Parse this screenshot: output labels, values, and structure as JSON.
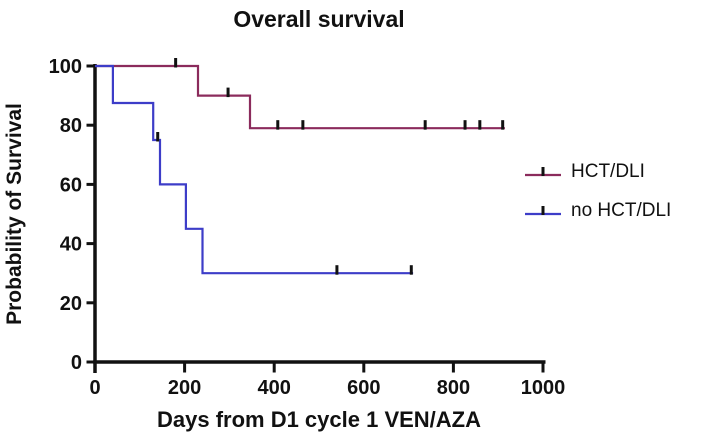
{
  "figure": {
    "background": "#ffffff",
    "axis_color": "#111111"
  },
  "chart_data": {
    "type": "line",
    "subtype": "kaplan_meier_step",
    "title": "Overall survival",
    "xlabel": "Days from D1 cycle 1 VEN/AZA",
    "ylabel": "Probability of Survival",
    "xlim": [
      0,
      1000
    ],
    "ylim": [
      0,
      100
    ],
    "x_ticks": [
      0,
      200,
      400,
      600,
      800,
      1000
    ],
    "y_ticks": [
      0,
      20,
      40,
      60,
      80,
      100
    ],
    "grid": false,
    "legend_position": "right",
    "series": [
      {
        "name": "HCT/DLI",
        "color": "#8B2B5C",
        "points": [
          [
            0,
            100
          ],
          [
            230,
            100
          ],
          [
            230,
            90
          ],
          [
            346,
            90
          ],
          [
            346,
            79
          ],
          [
            915,
            79
          ]
        ],
        "censor_marks": [
          [
            180,
            100
          ],
          [
            297,
            90
          ],
          [
            408,
            79
          ],
          [
            464,
            79
          ],
          [
            737,
            79
          ],
          [
            826,
            79
          ],
          [
            859,
            79
          ],
          [
            910,
            79
          ]
        ]
      },
      {
        "name": "no HCT/DLI",
        "color": "#3D3DC8",
        "points": [
          [
            0,
            100
          ],
          [
            40,
            100
          ],
          [
            40,
            87.5
          ],
          [
            130,
            87.5
          ],
          [
            130,
            75
          ],
          [
            145,
            75
          ],
          [
            145,
            60
          ],
          [
            203,
            60
          ],
          [
            203,
            45
          ],
          [
            240,
            45
          ],
          [
            240,
            30
          ],
          [
            710,
            30
          ]
        ],
        "censor_marks": [
          [
            140,
            75
          ],
          [
            540,
            30
          ],
          [
            706,
            30
          ]
        ]
      }
    ]
  }
}
